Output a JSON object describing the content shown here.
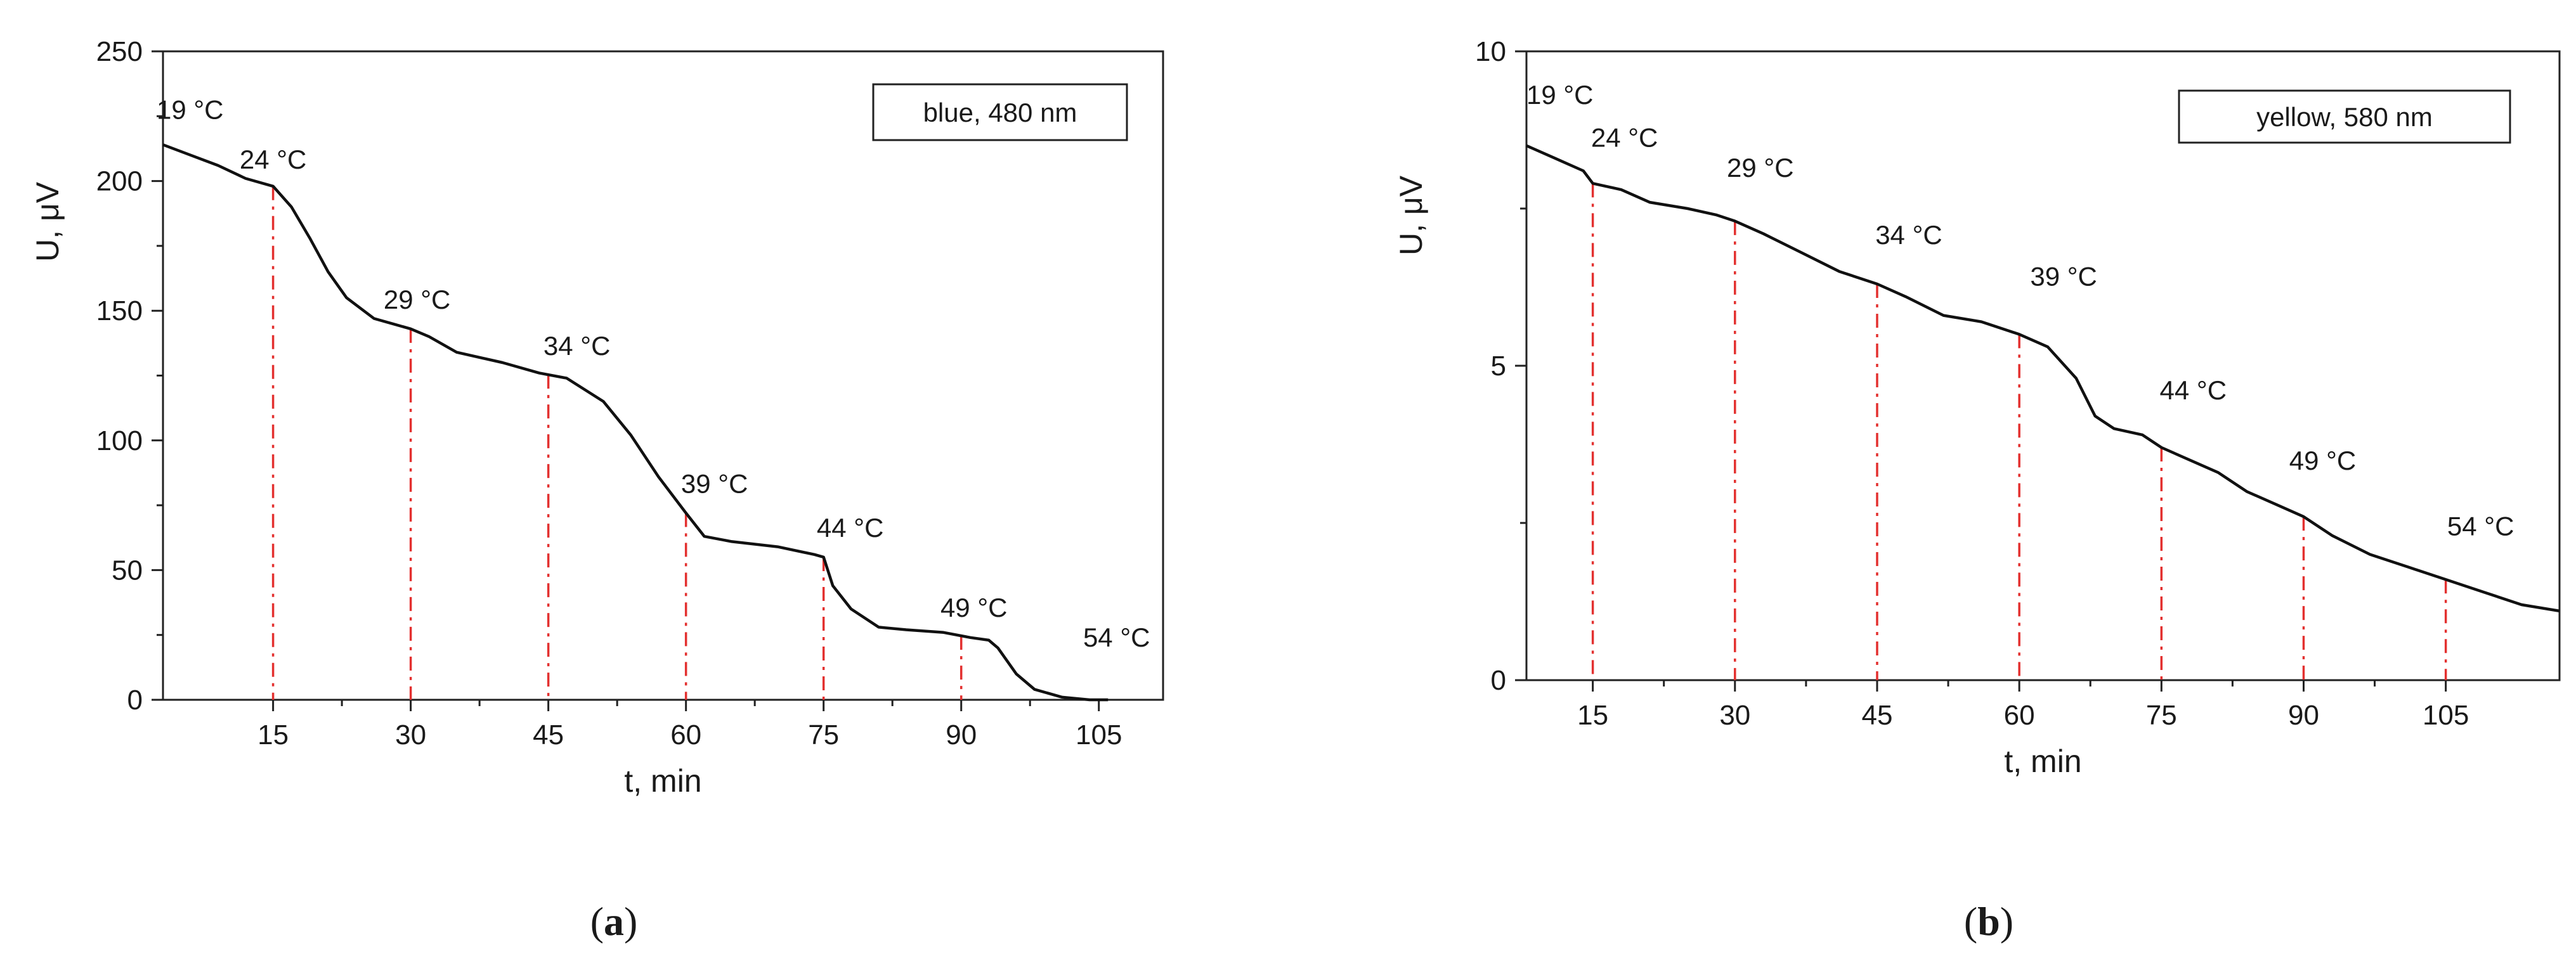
{
  "chart_data": [
    {
      "type": "line",
      "panel_label": "a",
      "legend": "blue, 480 nm",
      "legend_position": "top-right",
      "xlabel": "t, min",
      "ylabel": "U, μV",
      "xlim": [
        3,
        112
      ],
      "ylim": [
        0,
        250
      ],
      "xticks": [
        15,
        30,
        45,
        60,
        75,
        90,
        105
      ],
      "yticks": [
        0,
        50,
        100,
        150,
        200,
        250
      ],
      "grid": false,
      "series": [
        {
          "x": [
            3,
            6,
            9,
            12,
            15,
            17,
            19,
            21,
            23,
            26,
            30,
            32,
            35,
            40,
            44,
            47,
            51,
            54,
            57,
            60,
            62,
            65,
            70,
            74,
            75,
            76,
            78,
            81,
            84,
            88,
            91,
            93,
            94,
            96,
            98,
            101,
            104,
            106
          ],
          "y": [
            214,
            210,
            206,
            201,
            198,
            190,
            178,
            165,
            155,
            147,
            143,
            140,
            134,
            130,
            126,
            124,
            115,
            102,
            86,
            72,
            63,
            61,
            59,
            56,
            55,
            44,
            35,
            28,
            27,
            26,
            24,
            23,
            20,
            10,
            4,
            1,
            0,
            0
          ]
        }
      ],
      "annotations": [
        {
          "t": 3,
          "temperature": "19 °C"
        },
        {
          "t": 15,
          "temperature": "24 °C"
        },
        {
          "t": 30,
          "temperature": "29 °C"
        },
        {
          "t": 45,
          "temperature": "34 °C"
        },
        {
          "t": 60,
          "temperature": "39 °C"
        },
        {
          "t": 75,
          "temperature": "44 °C"
        },
        {
          "t": 90,
          "temperature": "49 °C"
        },
        {
          "t": 105,
          "temperature": "54 °C"
        }
      ]
    },
    {
      "type": "line",
      "panel_label": "b",
      "legend": "yellow, 580 nm",
      "legend_position": "top-right",
      "xlabel": "t, min",
      "ylabel": "U, μV",
      "xlim": [
        8,
        117
      ],
      "ylim": [
        0,
        10
      ],
      "xticks": [
        15,
        30,
        45,
        60,
        75,
        90,
        105
      ],
      "yticks": [
        0,
        5,
        10
      ],
      "grid": false,
      "series": [
        {
          "x": [
            8,
            11,
            14,
            15,
            18,
            21,
            25,
            28,
            30,
            33,
            37,
            41,
            45,
            48,
            52,
            56,
            60,
            63,
            66,
            68,
            70,
            73,
            75,
            78,
            81,
            84,
            87,
            90,
            93,
            97,
            101,
            105,
            109,
            113,
            117
          ],
          "y": [
            8.5,
            8.3,
            8.1,
            7.9,
            7.8,
            7.6,
            7.5,
            7.4,
            7.3,
            7.1,
            6.8,
            6.5,
            6.3,
            6.1,
            5.8,
            5.7,
            5.5,
            5.3,
            4.8,
            4.2,
            4.0,
            3.9,
            3.7,
            3.5,
            3.3,
            3.0,
            2.8,
            2.6,
            2.3,
            2.0,
            1.8,
            1.6,
            1.4,
            1.2,
            1.1
          ]
        }
      ],
      "annotations": [
        {
          "t": 8,
          "temperature": "19 °C"
        },
        {
          "t": 15,
          "temperature": "24 °C"
        },
        {
          "t": 30,
          "temperature": "29 °C"
        },
        {
          "t": 45,
          "temperature": "34 °C"
        },
        {
          "t": 60,
          "temperature": "39 °C"
        },
        {
          "t": 75,
          "temperature": "44 °C"
        },
        {
          "t": 90,
          "temperature": "49 °C"
        },
        {
          "t": 105,
          "temperature": "54 °C"
        }
      ]
    }
  ]
}
